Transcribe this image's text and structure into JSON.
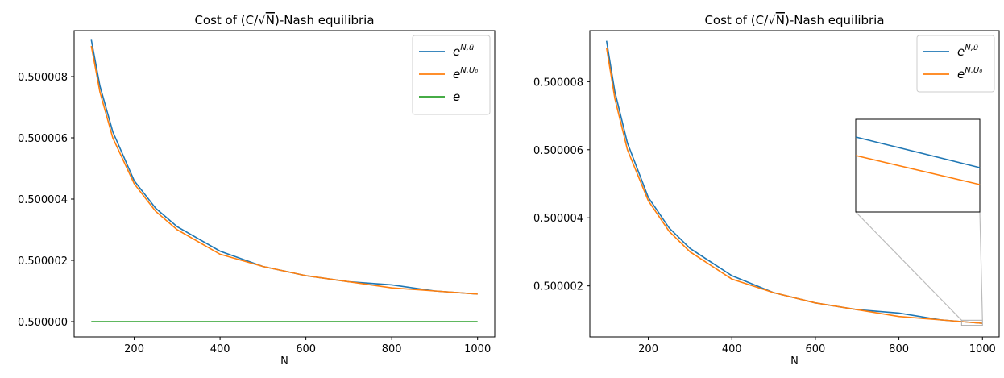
{
  "chart_data": [
    {
      "type": "line",
      "title": "Cost of (C/√N)-Nash equilibria",
      "xlabel": "N",
      "ylabel": "",
      "xlim": [
        60,
        1040
      ],
      "ylim": [
        0.4999995,
        0.5000095
      ],
      "xticks": [
        "200",
        "400",
        "600",
        "800",
        "1000"
      ],
      "xtick_values": [
        200,
        400,
        600,
        800,
        1000
      ],
      "yticks": [
        "0.500000",
        "0.500002",
        "0.500004",
        "0.500006",
        "0.500008"
      ],
      "ytick_values": [
        0.5,
        0.500002,
        0.500004,
        0.500006,
        0.500008
      ],
      "grid": false,
      "legend_position": "top-right",
      "series": [
        {
          "name": "e^{N,ū}",
          "color": "#1f77b4",
          "x": [
            100,
            120,
            150,
            200,
            250,
            300,
            400,
            500,
            600,
            700,
            800,
            900,
            1000
          ],
          "values": [
            0.5000092,
            0.5000077,
            0.5000062,
            0.5000046,
            0.5000037,
            0.5000031,
            0.5000023,
            0.5000018,
            0.5000015,
            0.5000013,
            0.5000012,
            0.500001,
            0.5000009
          ]
        },
        {
          "name": "e^{N,U₀}",
          "color": "#ff7f0e",
          "x": [
            100,
            120,
            150,
            200,
            250,
            300,
            400,
            500,
            600,
            700,
            800,
            900,
            1000
          ],
          "values": [
            0.500009,
            0.5000075,
            0.500006,
            0.5000045,
            0.5000036,
            0.500003,
            0.5000022,
            0.5000018,
            0.5000015,
            0.5000013,
            0.5000011,
            0.500001,
            0.5000009
          ]
        },
        {
          "name": "e",
          "color": "#2ca02c",
          "x": [
            100,
            1000
          ],
          "values": [
            0.5,
            0.5
          ]
        }
      ]
    },
    {
      "type": "line",
      "title": "Cost of (C/√N)-Nash equilibria",
      "xlabel": "N",
      "ylabel": "",
      "xlim": [
        60,
        1040
      ],
      "ylim": [
        0.5000005,
        0.5000095
      ],
      "xticks": [
        "200",
        "400",
        "600",
        "800",
        "1000"
      ],
      "xtick_values": [
        200,
        400,
        600,
        800,
        1000
      ],
      "yticks": [
        "0.500002",
        "0.500004",
        "0.500006",
        "0.500008"
      ],
      "ytick_values": [
        0.500002,
        0.500004,
        0.500006,
        0.500008
      ],
      "grid": false,
      "legend_position": "top-right",
      "inset": "zoom of the lower-right end near N = 1000",
      "series": [
        {
          "name": "e^{N,ū}",
          "color": "#1f77b4",
          "x": [
            100,
            120,
            150,
            200,
            250,
            300,
            400,
            500,
            600,
            700,
            800,
            900,
            1000
          ],
          "values": [
            0.5000092,
            0.5000077,
            0.5000062,
            0.5000046,
            0.5000037,
            0.5000031,
            0.5000023,
            0.5000018,
            0.5000015,
            0.5000013,
            0.5000012,
            0.500001,
            0.5000009
          ]
        },
        {
          "name": "e^{N,U₀}",
          "color": "#ff7f0e",
          "x": [
            100,
            120,
            150,
            200,
            250,
            300,
            400,
            500,
            600,
            700,
            800,
            900,
            1000
          ],
          "values": [
            0.500009,
            0.5000075,
            0.500006,
            0.5000045,
            0.5000036,
            0.500003,
            0.5000022,
            0.5000018,
            0.5000015,
            0.5000013,
            0.5000011,
            0.500001,
            0.5000009
          ]
        }
      ]
    }
  ]
}
